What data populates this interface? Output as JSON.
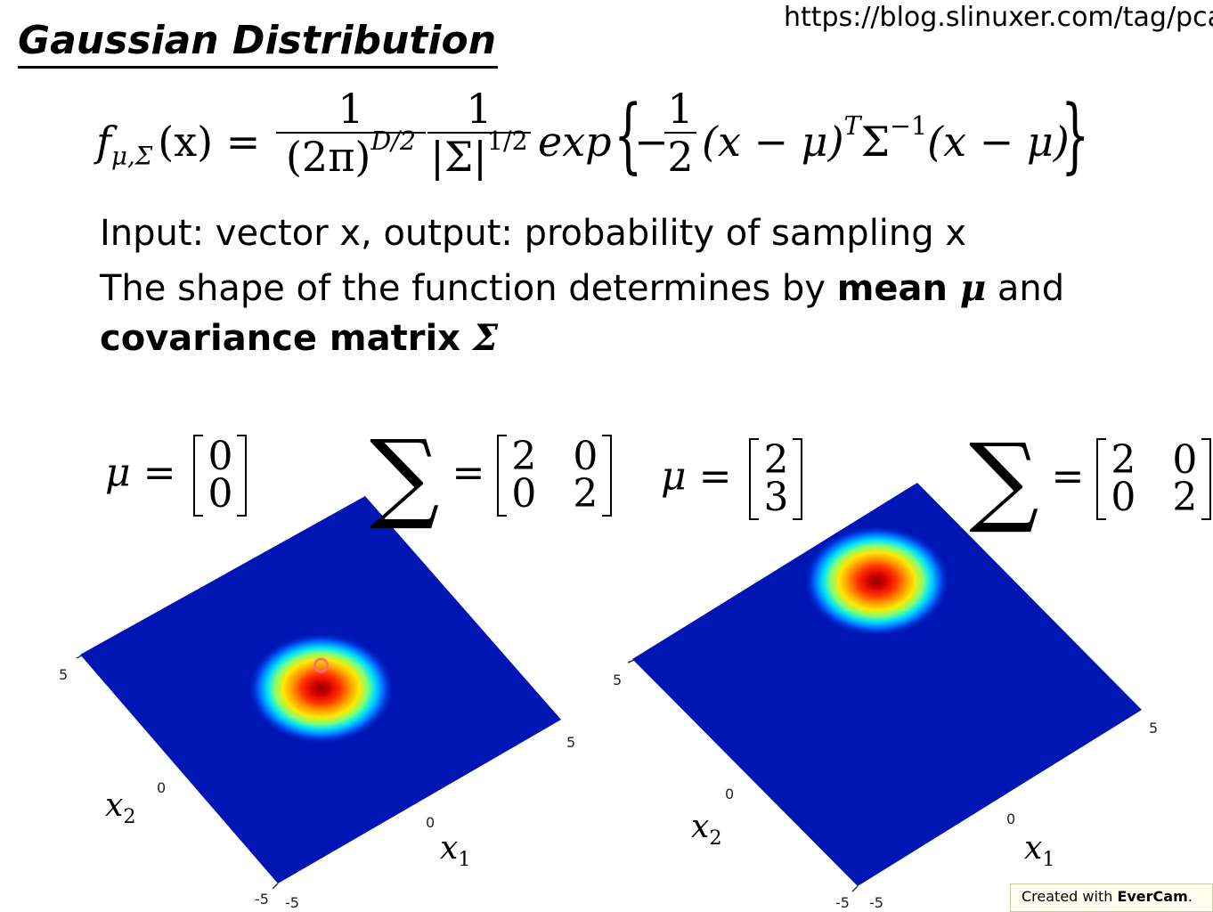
{
  "header": {
    "title": "Gaussian Distribution",
    "url": "https://blog.slinuxer.com/tag/pca"
  },
  "formula": {
    "lhs_f": "f",
    "lhs_sub": "μ,Σ",
    "lhs_arg": "(x) =",
    "frac1_num": "1",
    "frac1_den": "(2π)",
    "frac1_den_sup": "D/2",
    "frac2_num": "1",
    "frac2_den": "|Σ|",
    "frac2_den_sup": "1/2",
    "exp": "exp",
    "left_brace": "{",
    "minus": "−",
    "frac3_num": "1",
    "frac3_den": "2",
    "quad_a": "(x − μ)",
    "quad_sup_t": "T",
    "quad_sigma": "Σ",
    "quad_sup_inv": "−1",
    "quad_b": "(x − μ)",
    "right_brace": "}"
  },
  "text": {
    "line1": "Input: vector x, output: probability of sampling x",
    "line2_a": "The shape of the function determines by ",
    "line2_bold": "mean ",
    "line2_sym": "μ",
    "line2_b": " and",
    "line3_bold": "covariance matrix ",
    "line3_sym": "Σ"
  },
  "plots": [
    {
      "mu_label": "μ =",
      "mu": [
        "0",
        "0"
      ],
      "sigma_symbol": "∑",
      "sigma_eq": "=",
      "sigma": [
        [
          "2",
          "0"
        ],
        [
          "0",
          "2"
        ]
      ],
      "mean": [
        0,
        0
      ],
      "variance": [
        2,
        2
      ],
      "ticks": {
        "x2_max": "5",
        "x2_mid": "0",
        "x1_max": "5",
        "x1_mid": "0",
        "x2_min": "-5",
        "x1_min": "-5"
      },
      "x1_label": "x",
      "x1_sub": "1",
      "x2_label": "x",
      "x2_sub": "2"
    },
    {
      "mu_label": "μ =",
      "mu": [
        "2",
        "3"
      ],
      "sigma_symbol": "∑",
      "sigma_eq": "=",
      "sigma": [
        [
          "2",
          "0"
        ],
        [
          "0",
          "2"
        ]
      ],
      "mean": [
        2,
        3
      ],
      "variance": [
        2,
        2
      ],
      "ticks": {
        "x2_max": "5",
        "x2_mid": "0",
        "x1_max": "5",
        "x1_mid": "0",
        "x2_min": "-5",
        "x1_min": "-5"
      },
      "x1_label": "x",
      "x1_sub": "1",
      "x2_label": "x",
      "x2_sub": "2"
    }
  ],
  "footer": {
    "badge_prefix": "Created with ",
    "badge_brand": "EverCam",
    "badge_suffix": "."
  },
  "colors": {
    "surface_base": "#0016b4",
    "heat_peak": "#8b0000"
  }
}
